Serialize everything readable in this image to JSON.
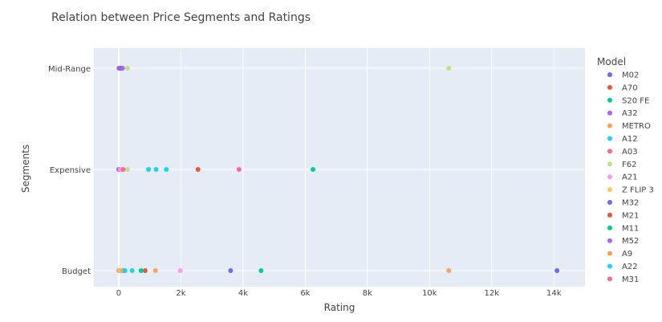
{
  "chart_data": {
    "type": "scatter",
    "title": "Relation between Price Segments and Ratings",
    "xlabel": "Rating",
    "ylabel": "Segments",
    "categories": [
      "Budget",
      "Expensive",
      "Mid-Range"
    ],
    "xlim": [
      -800,
      15000
    ],
    "xticks": [
      0,
      2000,
      4000,
      6000,
      8000,
      10000,
      12000,
      14000
    ],
    "xtick_labels": [
      "0",
      "2k",
      "4k",
      "6k",
      "8k",
      "10k",
      "12k",
      "14k"
    ],
    "grid": true,
    "legend_title": "Model",
    "legend_position": "right",
    "series": [
      {
        "name": "M02",
        "color": "#636efa",
        "points": [
          {
            "x": 3600,
            "y": "Budget"
          },
          {
            "x": 14100,
            "y": "Budget"
          },
          {
            "x": 20,
            "y": "Expensive"
          },
          {
            "x": 10,
            "y": "Mid-Range"
          }
        ]
      },
      {
        "name": "A70",
        "color": "#EF553B",
        "points": [
          {
            "x": 2550,
            "y": "Expensive"
          },
          {
            "x": 850,
            "y": "Budget"
          },
          {
            "x": 40,
            "y": "Mid-Range"
          }
        ]
      },
      {
        "name": "S20 FE",
        "color": "#00cc96",
        "points": [
          {
            "x": 6250,
            "y": "Expensive"
          },
          {
            "x": 4580,
            "y": "Budget"
          },
          {
            "x": 720,
            "y": "Budget"
          }
        ]
      },
      {
        "name": "A32",
        "color": "#ab63fa",
        "points": [
          {
            "x": 60,
            "y": "Mid-Range"
          },
          {
            "x": 0,
            "y": "Expensive"
          },
          {
            "x": 30,
            "y": "Budget"
          }
        ]
      },
      {
        "name": "METRO",
        "color": "#FFA15A",
        "points": [
          {
            "x": 1180,
            "y": "Budget"
          },
          {
            "x": 10620,
            "y": "Budget"
          },
          {
            "x": 0,
            "y": "Budget"
          }
        ]
      },
      {
        "name": "A12",
        "color": "#19d3f3",
        "points": [
          {
            "x": 960,
            "y": "Expensive"
          },
          {
            "x": 1200,
            "y": "Expensive"
          },
          {
            "x": 1530,
            "y": "Expensive"
          },
          {
            "x": 430,
            "y": "Budget"
          }
        ]
      },
      {
        "name": "A03",
        "color": "#FF6692",
        "points": [
          {
            "x": 3870,
            "y": "Expensive"
          },
          {
            "x": 80,
            "y": "Budget"
          }
        ]
      },
      {
        "name": "F62",
        "color": "#B6E880",
        "points": [
          {
            "x": 10620,
            "y": "Mid-Range"
          },
          {
            "x": 280,
            "y": "Mid-Range"
          },
          {
            "x": 280,
            "y": "Expensive"
          },
          {
            "x": 60,
            "y": "Budget"
          }
        ]
      },
      {
        "name": "A21",
        "color": "#FF97FF",
        "points": [
          {
            "x": 1980,
            "y": "Budget"
          },
          {
            "x": 50,
            "y": "Expensive"
          }
        ]
      },
      {
        "name": "Z FLIP 3",
        "color": "#FECB52",
        "points": [
          {
            "x": 100,
            "y": "Budget"
          }
        ]
      },
      {
        "name": "M32",
        "color": "#636efa",
        "points": [
          {
            "x": 90,
            "y": "Mid-Range"
          },
          {
            "x": 130,
            "y": "Budget"
          }
        ]
      },
      {
        "name": "M21",
        "color": "#EF553B",
        "points": [
          {
            "x": 150,
            "y": "Budget"
          }
        ]
      },
      {
        "name": "M11",
        "color": "#00cc96",
        "points": [
          {
            "x": 170,
            "y": "Budget"
          }
        ]
      },
      {
        "name": "M52",
        "color": "#ab63fa",
        "points": [
          {
            "x": 120,
            "y": "Mid-Range"
          }
        ]
      },
      {
        "name": "A9",
        "color": "#FFA15A",
        "points": [
          {
            "x": 110,
            "y": "Budget"
          }
        ]
      },
      {
        "name": "A22",
        "color": "#19d3f3",
        "points": [
          {
            "x": 200,
            "y": "Budget"
          }
        ]
      },
      {
        "name": "M31",
        "color": "#FF6692",
        "points": [
          {
            "x": 140,
            "y": "Expensive"
          }
        ]
      }
    ]
  }
}
